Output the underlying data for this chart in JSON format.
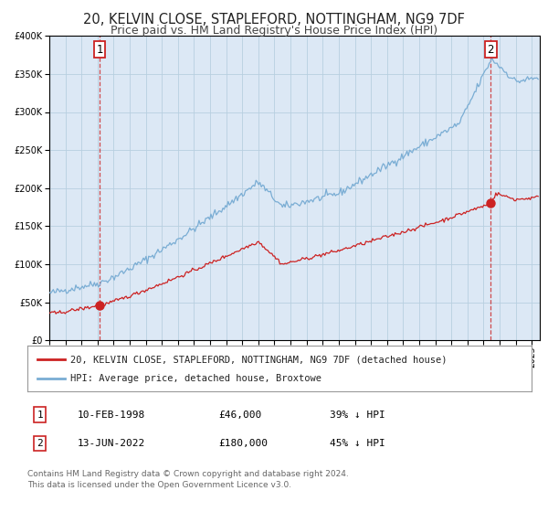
{
  "title": "20, KELVIN CLOSE, STAPLEFORD, NOTTINGHAM, NG9 7DF",
  "subtitle": "Price paid vs. HM Land Registry's House Price Index (HPI)",
  "ylim": [
    0,
    400000
  ],
  "xlim_start": 1995.0,
  "xlim_end": 2025.5,
  "background_color": "#ffffff",
  "plot_bg_color": "#dce8f5",
  "grid_color": "#b8cfe0",
  "hpi_color": "#7aadd4",
  "price_color": "#cc2222",
  "sale1_date_x": 1998.12,
  "sale1_price": 46000,
  "sale2_date_x": 2022.45,
  "sale2_price": 180000,
  "legend_label_price": "20, KELVIN CLOSE, STAPLEFORD, NOTTINGHAM, NG9 7DF (detached house)",
  "legend_label_hpi": "HPI: Average price, detached house, Broxtowe",
  "annotation1_label": "1",
  "annotation2_label": "2",
  "callout_color": "#cc2222",
  "table_row1": [
    "1",
    "10-FEB-1998",
    "£46,000",
    "39% ↓ HPI"
  ],
  "table_row2": [
    "2",
    "13-JUN-2022",
    "£180,000",
    "45% ↓ HPI"
  ],
  "footer1": "Contains HM Land Registry data © Crown copyright and database right 2024.",
  "footer2": "This data is licensed under the Open Government Licence v3.0.",
  "title_fontsize": 10.5,
  "subtitle_fontsize": 9,
  "tick_fontsize": 7,
  "legend_fontsize": 7.5,
  "table_fontsize": 8,
  "footer_fontsize": 6.5
}
